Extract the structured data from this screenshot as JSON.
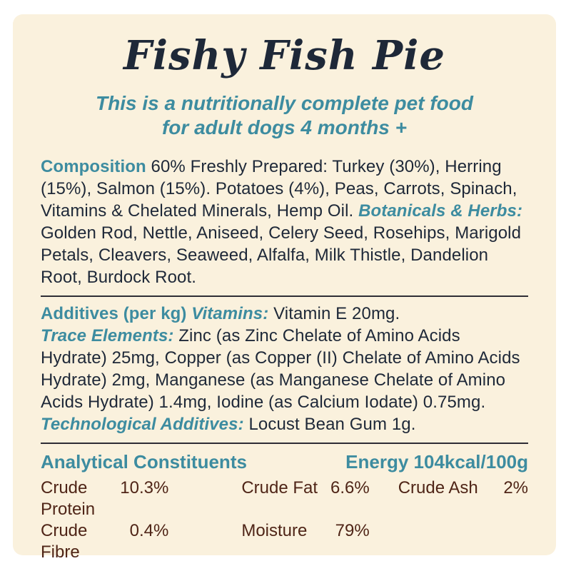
{
  "label": {
    "title": "Fishy Fish Pie",
    "subtitle_line1": "This is a nutritionally complete pet food",
    "subtitle_line2": "for adult dogs 4 months +"
  },
  "composition": {
    "heading": "Composition",
    "intro": "60% Freshly Prepared: Turkey (30%), Herring (15%), Salmon (15%). Potatoes (4%), Peas, Carrots, Spinach, Vitamins & Chelated Minerals, Hemp Oil.",
    "botanicals_heading": "Botanicals & Herbs:",
    "botanicals_list": "Golden Rod, Nettle, Aniseed, Celery Seed, Rosehips, Marigold Petals, Cleavers, Seaweed, Alfalfa, Milk Thistle, Dandelion Root, Burdock Root."
  },
  "additives": {
    "heading": "Additives (per kg)",
    "vitamins_heading": "Vitamins:",
    "vitamins_text": "Vitamin E 20mg.",
    "trace_heading": "Trace Elements:",
    "trace_text": "Zinc (as Zinc Chelate of Amino Acids Hydrate) 25mg, Copper (as Copper (II) Chelate of Amino Acids Hydrate) 2mg, Manganese (as Manganese Chelate of Amino Acids Hydrate) 1.4mg, Iodine (as Calcium Iodate) 0.75mg.",
    "tech_heading": "Technological Additives:",
    "tech_text": "Locust Bean Gum 1g."
  },
  "analytical": {
    "heading": "Analytical Constituents",
    "energy": "Energy 104kcal/100g",
    "rows": [
      {
        "label": "Crude Protein",
        "value": "10.3%"
      },
      {
        "label": "Crude Fat",
        "value": "6.6%"
      },
      {
        "label": "Crude Ash",
        "value": "2%"
      },
      {
        "label": "Crude Fibre",
        "value": "0.4%"
      },
      {
        "label": "Moisture",
        "value": "79%"
      }
    ]
  },
  "colors": {
    "panel_background": "#faf1dd",
    "navy_text": "#1e2838",
    "teal_accent": "#3d8ca0",
    "brown_text": "#4f2517",
    "divider": "#2e2d35"
  }
}
